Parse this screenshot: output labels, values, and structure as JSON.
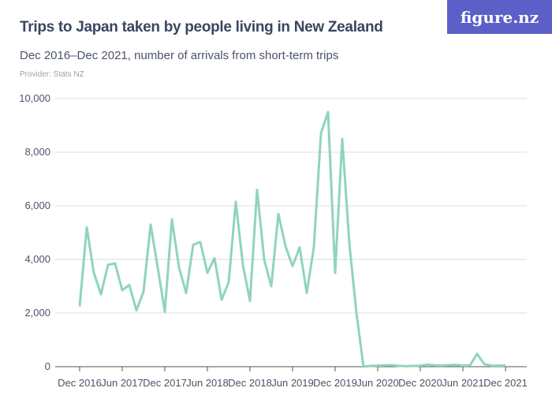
{
  "title": "Trips to Japan taken by people living in New Zealand",
  "subtitle": "Dec 2016–Dec 2021, number of arrivals from short-term trips",
  "provider": "Provider: Stats NZ",
  "logo": "figure.nz",
  "colors": {
    "line": "#8fd5b9",
    "logo_bg": "#5c5fc7",
    "title": "#3a4660"
  },
  "chart_data": {
    "type": "line",
    "title": "Trips to Japan taken by people living in New Zealand",
    "xlabel": "",
    "ylabel": "",
    "ylim": [
      0,
      10000
    ],
    "grid": true,
    "y_ticks": [
      "0",
      "2,000",
      "4,000",
      "6,000",
      "8,000",
      "10,000"
    ],
    "y_tick_values": [
      0,
      2000,
      4000,
      6000,
      8000,
      10000
    ],
    "x_ticks": [
      "Dec 2016",
      "Jun 2017",
      "Dec 2017",
      "Jun 2018",
      "Dec 2018",
      "Jun 2019",
      "Dec 2019",
      "Jun 2020",
      "Dec 2020",
      "Jun 2021",
      "Dec 2021"
    ],
    "x_start": "Dec 2016",
    "x_end": "Dec 2021",
    "frequency": "monthly",
    "values": [
      2250,
      5200,
      3500,
      2700,
      3800,
      3850,
      2850,
      3050,
      2100,
      2800,
      5300,
      3700,
      2050,
      5500,
      3700,
      2750,
      4550,
      4650,
      3500,
      4050,
      2500,
      3150,
      6150,
      3800,
      2450,
      6600,
      4000,
      3000,
      5700,
      4500,
      3750,
      4450,
      2750,
      4450,
      8700,
      9500,
      3500,
      8500,
      4600,
      2000,
      0,
      30,
      40,
      50,
      60,
      30,
      20,
      30,
      40,
      80,
      50,
      40,
      60,
      70,
      40,
      50,
      480,
      100,
      40,
      40,
      40
    ]
  }
}
